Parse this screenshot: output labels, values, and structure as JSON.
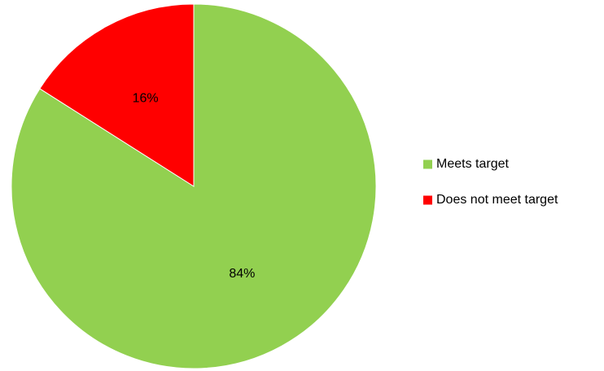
{
  "chart_data": {
    "type": "pie",
    "title": "",
    "start_angle": "12 o'clock",
    "direction": "clockwise",
    "legend_position": "right",
    "slices": [
      {
        "label": "Meets target",
        "value": 84,
        "display": "84%",
        "color": "#92d050"
      },
      {
        "label": "Does not meet target",
        "value": 16,
        "display": "16%",
        "color": "#ff0000"
      }
    ]
  }
}
